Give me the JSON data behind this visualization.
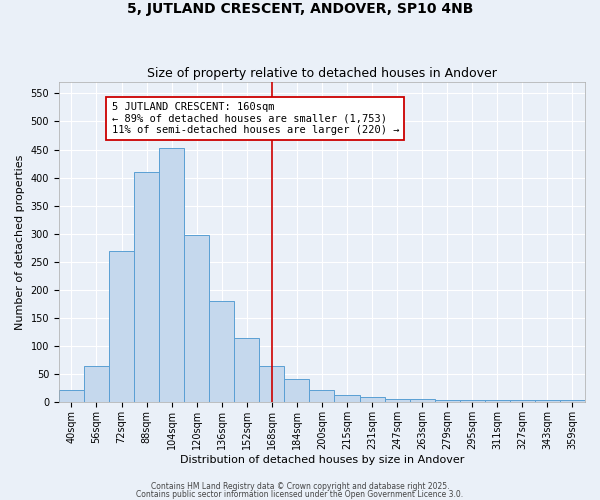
{
  "title": "5, JUTLAND CRESCENT, ANDOVER, SP10 4NB",
  "subtitle": "Size of property relative to detached houses in Andover",
  "xlabel": "Distribution of detached houses by size in Andover",
  "ylabel": "Number of detached properties",
  "bar_color": "#c5d8ed",
  "bar_edge_color": "#5a9fd4",
  "bg_color": "#eaf0f8",
  "grid_color": "#ffffff",
  "categories": [
    "40sqm",
    "56sqm",
    "72sqm",
    "88sqm",
    "104sqm",
    "120sqm",
    "136sqm",
    "152sqm",
    "168sqm",
    "184sqm",
    "200sqm",
    "215sqm",
    "231sqm",
    "247sqm",
    "263sqm",
    "279sqm",
    "295sqm",
    "311sqm",
    "327sqm",
    "343sqm",
    "359sqm"
  ],
  "values": [
    22,
    65,
    270,
    410,
    453,
    298,
    180,
    115,
    65,
    42,
    23,
    14,
    10,
    6,
    6,
    5,
    4,
    4,
    4,
    4,
    4
  ],
  "ylim": [
    0,
    570
  ],
  "yticks": [
    0,
    50,
    100,
    150,
    200,
    250,
    300,
    350,
    400,
    450,
    500,
    550
  ],
  "property_line_x": 8.0,
  "property_line_color": "#cc0000",
  "annotation_line1": "5 JUTLAND CRESCENT: 160sqm",
  "annotation_line2": "← 89% of detached houses are smaller (1,753)",
  "annotation_line3": "11% of semi-detached houses are larger (220) →",
  "footer_line1": "Contains HM Land Registry data © Crown copyright and database right 2025.",
  "footer_line2": "Contains public sector information licensed under the Open Government Licence 3.0.",
  "title_fontsize": 10,
  "subtitle_fontsize": 9,
  "axis_label_fontsize": 8,
  "tick_fontsize": 7,
  "annotation_fontsize": 7.5
}
